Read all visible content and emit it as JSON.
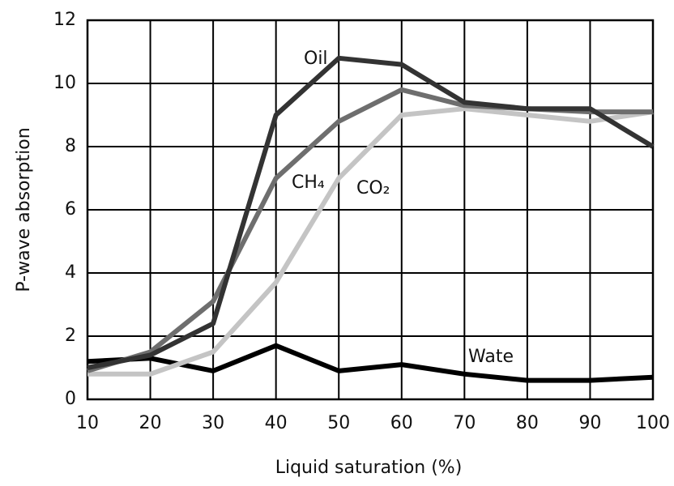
{
  "chart_data": {
    "type": "line",
    "xlabel": "Liquid saturation (%)",
    "ylabel": "P-wave absorption",
    "x": [
      10,
      20,
      30,
      40,
      50,
      60,
      70,
      80,
      90,
      100
    ],
    "series": [
      {
        "name": "Wate",
        "color": "#000000",
        "values": [
          1.2,
          1.3,
          0.9,
          1.7,
          0.9,
          1.1,
          0.8,
          0.6,
          0.6,
          0.7
        ]
      },
      {
        "name": "CO₂",
        "color": "#c4c4c4",
        "values": [
          0.8,
          0.8,
          1.5,
          3.7,
          7.0,
          9.0,
          9.2,
          9.0,
          8.8,
          9.1
        ]
      },
      {
        "name": "CH₄",
        "color": "#6e6e6e",
        "values": [
          0.9,
          1.5,
          3.1,
          7.0,
          8.8,
          9.8,
          9.3,
          9.2,
          9.1,
          9.1
        ]
      },
      {
        "name": "Oil",
        "color": "#333333",
        "values": [
          1.0,
          1.4,
          2.4,
          9.0,
          10.8,
          10.6,
          9.4,
          9.2,
          9.2,
          8.0
        ]
      }
    ],
    "xlim": [
      10,
      100
    ],
    "xticks": [
      10,
      20,
      30,
      40,
      50,
      60,
      70,
      80,
      90,
      100
    ],
    "ylim": [
      0,
      12
    ],
    "yticks": [
      0,
      2,
      4,
      6,
      8,
      10,
      12
    ],
    "grid": true
  }
}
